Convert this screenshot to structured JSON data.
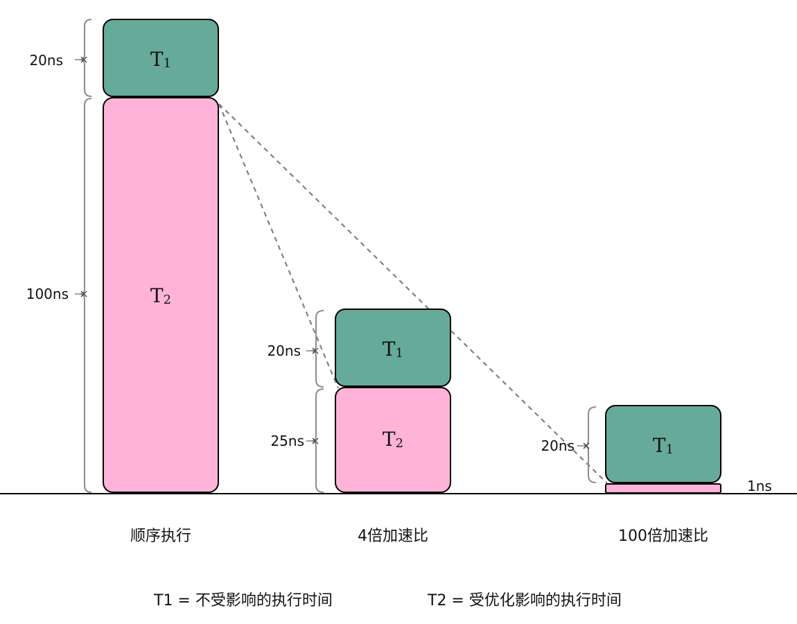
{
  "colors": {
    "t1_fill": "#66aa99",
    "t2_fill": "#ffb3d9",
    "outline": "#000000",
    "baseline": "#000000",
    "connector": "#808080",
    "brace": "#8c8c8c"
  },
  "columns": [
    {
      "caption": "顺序执行",
      "t1": {
        "label_main": "T",
        "label_sub": "1",
        "duration": "20ns"
      },
      "t2": {
        "label_main": "T",
        "label_sub": "2",
        "duration": "100ns"
      }
    },
    {
      "caption": "4倍加速比",
      "t1": {
        "label_main": "T",
        "label_sub": "1",
        "duration": "20ns"
      },
      "t2": {
        "label_main": "T",
        "label_sub": "2",
        "duration": "25ns"
      }
    },
    {
      "caption": "100倍加速比",
      "t1": {
        "label_main": "T",
        "label_sub": "1",
        "duration": "20ns"
      },
      "t2": {
        "duration": "1ns"
      }
    }
  ],
  "legend": {
    "t1": "T1 = 不受影响的执行时间",
    "t2": "T2 = 受优化影响的执行时间"
  }
}
